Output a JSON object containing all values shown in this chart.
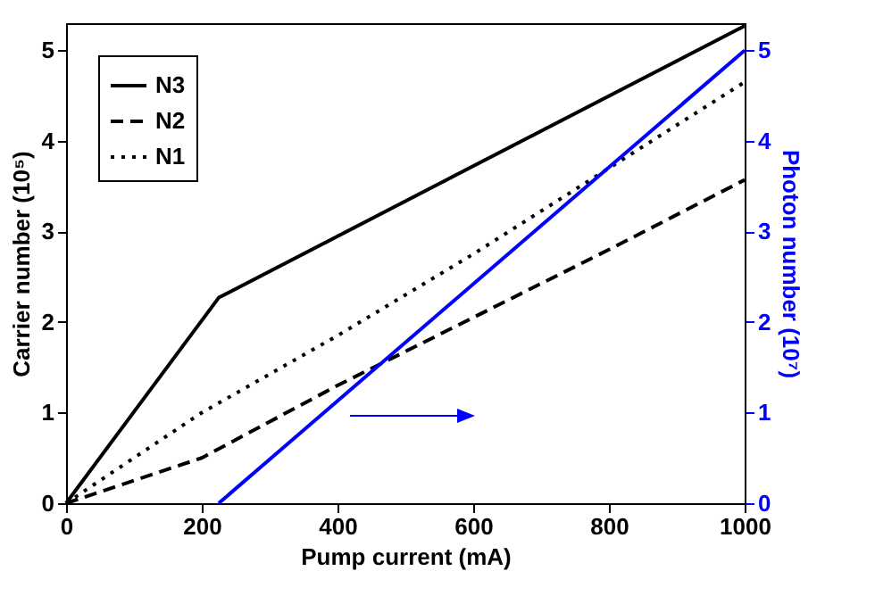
{
  "chart_data": {
    "type": "line",
    "xlabel": "Pump current (mA)",
    "ylabel": "Carrier number (10⁵)",
    "y2label": "Photon number (10⁷)",
    "xlim": [
      0,
      1000
    ],
    "xticks": [
      0,
      200,
      400,
      600,
      800,
      1000
    ],
    "ylim": [
      0,
      5.3
    ],
    "yticks": [
      0,
      1,
      2,
      3,
      4,
      5
    ],
    "y2lim": [
      0,
      5.3
    ],
    "y2ticks": [
      0,
      1,
      2,
      3,
      4,
      5
    ],
    "grid": false,
    "legend": "top left",
    "series": [
      {
        "name": "N3",
        "color": "#000000",
        "line_style": "solid",
        "x": [
          0,
          225,
          1000
        ],
        "values": [
          0,
          2.27,
          5.27
        ]
      },
      {
        "name": "N2",
        "color": "#000000",
        "line_style": "dashed",
        "x": [
          0,
          200,
          400,
          600,
          800,
          1000
        ],
        "values": [
          0,
          0.5,
          1.3,
          2.05,
          2.8,
          3.57
        ]
      },
      {
        "name": "N1",
        "color": "#000000",
        "line_style": "dotted",
        "x": [
          0,
          200,
          400,
          600,
          800,
          1000
        ],
        "values": [
          0,
          1.0,
          1.85,
          2.75,
          3.7,
          4.65
        ]
      },
      {
        "color": "#0000ff",
        "line_style": "solid",
        "axis": "y2",
        "x": [
          225,
          1000
        ],
        "values": [
          0,
          5
        ]
      }
    ]
  }
}
